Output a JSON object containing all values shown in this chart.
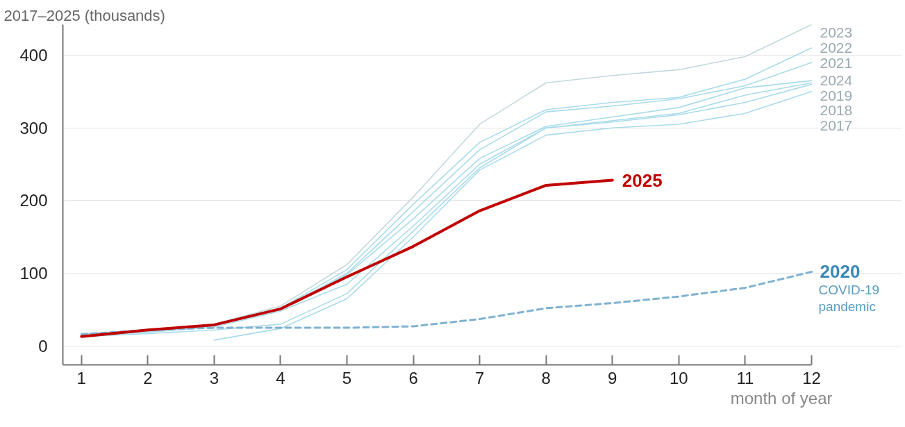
{
  "chart_data": {
    "type": "line",
    "subtitle": "2017–2025 (thousands)",
    "xlabel": "month of year",
    "x": [
      1,
      2,
      3,
      4,
      5,
      6,
      7,
      8,
      9,
      10,
      11,
      12
    ],
    "xlim": [
      0.72,
      12
    ],
    "xticks": [
      1,
      2,
      3,
      4,
      5,
      6,
      7,
      8,
      9,
      10,
      11,
      12
    ],
    "ylim": [
      -26,
      442
    ],
    "yticks": [
      0,
      100,
      200,
      300,
      400
    ],
    "grid": "y",
    "marker": "none",
    "series": [
      {
        "name": "2023",
        "color": "#c4d8dc",
        "values": [
          17,
          22,
          30,
          55,
          112,
          205,
          305,
          362,
          372,
          380,
          398,
          442
        ]
      },
      {
        "name": "2022",
        "color": "#a9dbea",
        "values": [
          16,
          21,
          29,
          52,
          105,
          195,
          280,
          325,
          335,
          342,
          367,
          410
        ]
      },
      {
        "name": "2021",
        "color": "#a9dbea",
        "values": [
          15,
          20,
          28,
          50,
          100,
          185,
          270,
          322,
          330,
          340,
          358,
          390
        ]
      },
      {
        "name": "2024",
        "color": "#a9dbea",
        "values": [
          16,
          21,
          30,
          52,
          98,
          175,
          258,
          302,
          315,
          328,
          355,
          365
        ]
      },
      {
        "name": "2019",
        "color": "#a9dbea",
        "values": [
          14,
          19,
          26,
          48,
          85,
          165,
          250,
          300,
          310,
          320,
          345,
          362
        ]
      },
      {
        "name": "2018",
        "color": "#a9dbea",
        "values": [
          13,
          17,
          22,
          30,
          72,
          158,
          245,
          300,
          308,
          318,
          335,
          360
        ]
      },
      {
        "name": "2017",
        "color": "#a9dbea",
        "values": [
          null,
          null,
          8,
          24,
          65,
          150,
          242,
          290,
          300,
          305,
          320,
          350
        ]
      },
      {
        "name": "2020",
        "color": "#7fb2d2",
        "line_style": "dashed",
        "values": [
          16,
          22,
          25,
          25,
          25,
          27,
          37,
          52,
          59,
          68,
          80,
          102
        ]
      },
      {
        "name": "2025",
        "color": "#c00000",
        "values": [
          13,
          22,
          29,
          51,
          95,
          137,
          186,
          221,
          228,
          null,
          null,
          null
        ]
      }
    ],
    "annotations": [
      {
        "text": "COVID-19\npandemic",
        "x": 12,
        "y": 102
      }
    ]
  }
}
